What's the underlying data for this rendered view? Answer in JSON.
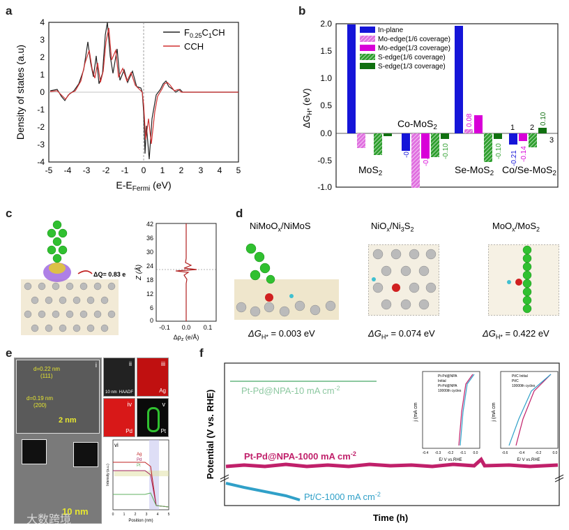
{
  "panels": {
    "a": {
      "label": "a",
      "xlabel": "E-E",
      "xlabel_sub": "Fermi",
      "xlabel_unit": " (eV)",
      "ylabel": "Density of states (a.u)",
      "xticks": [
        "-5",
        "-4",
        "-3",
        "-2",
        "-1",
        "0",
        "1",
        "2",
        "3",
        "4",
        "5"
      ],
      "yticks": [
        "4",
        "3",
        "2",
        "1",
        "0",
        "-1",
        "-2",
        "-3",
        "-4"
      ],
      "legend": [
        {
          "name": "F",
          "sub": "0.25",
          "rest": "C",
          "sub2": "1",
          "tail": "CH",
          "color": "#222222"
        },
        {
          "name": "CCH",
          "color": "#d03030"
        }
      ]
    },
    "b": {
      "label": "b",
      "ylabel": "ΔG",
      "ylabel_sub": "H*",
      "ylabel_unit": " (eV)",
      "yticks": [
        "2.0",
        "1.5",
        "1.0",
        "0.5",
        "0.0",
        "-0.5",
        "-1.0"
      ],
      "legend": [
        "In-plane",
        "Mo-edge(1/6 coverage)",
        "Mo-edge(1/3 coverage)",
        "S-edge(1/6 coverage)",
        "S-edge(1/3 coverage)"
      ],
      "colors": [
        "#1515d8",
        "#e070e0",
        "#d800d8",
        "#30a030",
        "#107010"
      ],
      "groups": [
        "MoS",
        "Co-MoS",
        "Se-MoS",
        "Co/Se-MoS"
      ],
      "group_sub": "2",
      "bar_labels": [
        "-0.32",
        "-0.46",
        "-0.10",
        "0.08",
        "-0.10",
        "-0.21",
        "-0.14",
        "0.10"
      ],
      "site_labels": [
        "1",
        "2",
        "3"
      ]
    },
    "c": {
      "label": "c",
      "charge_label": "ΔQ= 0.83 e",
      "ylabel": "Z (Å)",
      "xlabel": "Δρ",
      "xlabel_sub": "z",
      "xlabel_unit": " (e/Å)",
      "yticks": [
        "42",
        "36",
        "30",
        "24",
        "18",
        "12",
        "6",
        "0"
      ],
      "xticks": [
        "-0.1",
        "0.0",
        "0.1"
      ]
    },
    "d": {
      "label": "d",
      "titles": [
        {
          "main": "NiMoO",
          "sub": "x",
          "rest": "/NiMoS"
        },
        {
          "main": "NiO",
          "sub": "x",
          "rest": "/Ni",
          "sub2": "3",
          "tail": "S",
          "sub3": "2"
        },
        {
          "main": "MoO",
          "sub": "x",
          "rest": "/MoS",
          "sub2": "2"
        }
      ],
      "energies": [
        "ΔG",
        "= 0.003 eV",
        "= 0.074 eV",
        "= 0.422 eV"
      ],
      "energy_sub": "H*"
    },
    "e": {
      "label": "e",
      "sub_labels": [
        "i",
        "ii",
        "iii",
        "iv",
        "v",
        "vi"
      ],
      "annotations": [
        "d=0.22 nm",
        "(111)",
        "d=0.19 nm",
        "(200)"
      ],
      "scale_2nm": "2 nm",
      "scale_10nm": "10 nm",
      "scale_large": "10 nm",
      "map_labels": [
        "HAADF",
        "Ag",
        "Pd",
        "Pt"
      ],
      "line_legend": [
        "Ag",
        "Pd",
        "Pt"
      ],
      "line_xlabel": "Position (nm)",
      "line_ylabel": "Intensity (a.u.)",
      "line_xticks": [
        "0",
        "1",
        "2",
        "3",
        "4",
        "5"
      ]
    },
    "f": {
      "label": "f",
      "ylabel": "Potential (V vs. RHE)",
      "xlabel": "Time (h)",
      "series_labels": [
        {
          "text": "Pt-Pd@NPA-10 mA cm",
          "sup": "-2",
          "color": "#8cc8a0"
        },
        {
          "text": "Pt-Pd@NPA-1000 mA cm",
          "sup": "-2",
          "color": "#c0206a"
        },
        {
          "text": "Pt/C-1000 mA cm",
          "sup": "-2",
          "color": "#30a0c8"
        }
      ],
      "inset1": {
        "legend": [
          "Pt-Pd@NPA",
          "Initial",
          "Pt-Pd@NPA",
          "10000th cycles"
        ],
        "ylabel": "j (mA cm",
        "xlabel": "E/ V vs.RHE",
        "xticks": [
          "-0.4",
          "-0.3",
          "-0.2",
          "-0.1",
          "0.0"
        ]
      },
      "inset2": {
        "legend": [
          "Pt/C Initial",
          "Pt/C",
          "10000th cycles"
        ],
        "ylabel": "j (mA cm",
        "xlabel": "E/ V vs.RHE",
        "xticks": [
          "-0.6",
          "-0.4",
          "-0.2",
          "0.0"
        ]
      }
    },
    "watermark": "大数跨境"
  }
}
